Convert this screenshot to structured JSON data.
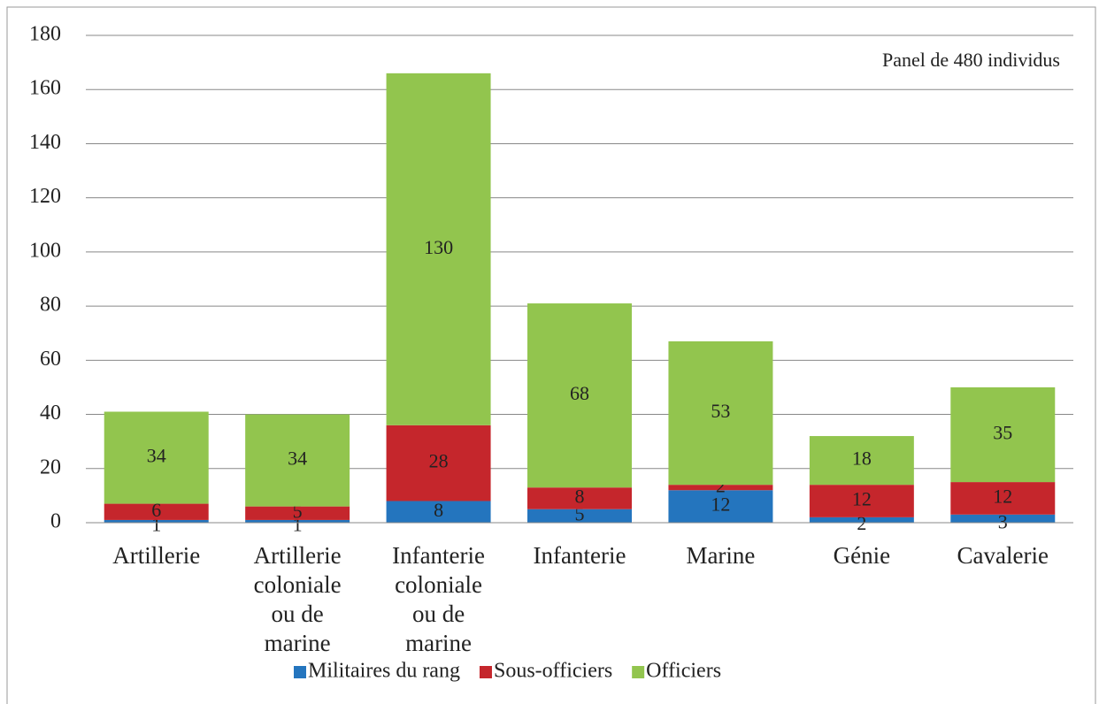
{
  "chart_data": {
    "type": "stacked_bar",
    "annotation": "Panel de 480 individus",
    "categories": [
      "Artillerie",
      "Artillerie coloniale ou de marine",
      "Infanterie coloniale ou de marine",
      "Infanterie",
      "Marine",
      "Génie",
      "Cavalerie"
    ],
    "series": [
      {
        "name": "Militaires du rang",
        "color": "#2475be",
        "values": [
          1,
          1,
          8,
          5,
          12,
          2,
          3
        ]
      },
      {
        "name": "Sous-officiers",
        "color": "#c5262c",
        "values": [
          6,
          5,
          28,
          8,
          2,
          12,
          12
        ]
      },
      {
        "name": "Officiers",
        "color": "#92c54e",
        "values": [
          34,
          34,
          130,
          68,
          53,
          18,
          35
        ]
      }
    ],
    "ylim": [
      0,
      180
    ],
    "yticks": [
      0,
      20,
      40,
      60,
      80,
      100,
      120,
      140,
      160,
      180
    ],
    "grid": true,
    "legend": "bottom"
  }
}
